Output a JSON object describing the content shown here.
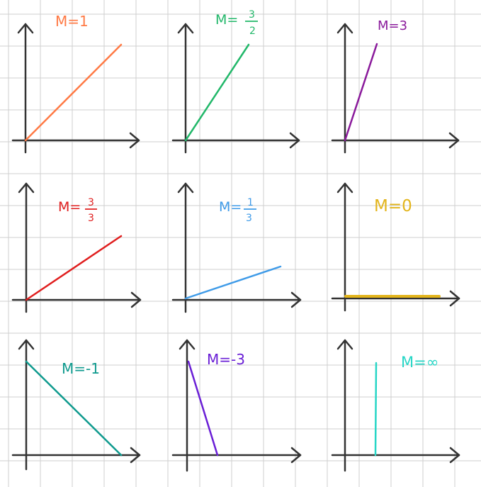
{
  "grid": {
    "line_color": "#cfcfcf",
    "background": "#ffffff"
  },
  "axis_color": "#333333",
  "panels": [
    {
      "id": "m-1",
      "label": "M=1",
      "color": "#ff7a45"
    },
    {
      "id": "m-3-2",
      "label_prefix": "M=",
      "num": "3",
      "den": "2",
      "color": "#22b86a"
    },
    {
      "id": "m-3",
      "label": "M=3",
      "color": "#8a1a9b"
    },
    {
      "id": "m-3-3",
      "label_prefix": "M=",
      "num": "3",
      "den": "3",
      "color": "#e01e1e"
    },
    {
      "id": "m-1-3",
      "label_prefix": "M=",
      "num": "1",
      "den": "3",
      "color": "#3f9be8"
    },
    {
      "id": "m-0",
      "label": "M=0",
      "color": "#e3b51c"
    },
    {
      "id": "m-neg1",
      "label": "M=-1",
      "color": "#0f9a8e"
    },
    {
      "id": "m-neg3",
      "label": "M=-3",
      "color": "#6a1fd6"
    },
    {
      "id": "m-infinity",
      "label": "M=∞",
      "color": "#27d6c6"
    }
  ]
}
